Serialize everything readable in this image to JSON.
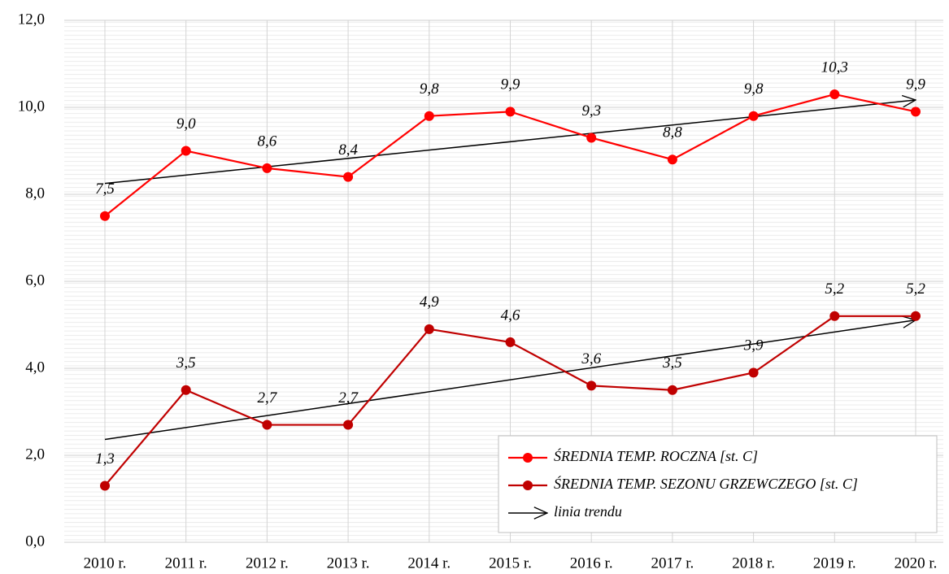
{
  "chart_data": {
    "type": "line",
    "categories": [
      "2010 r.",
      "2011 r.",
      "2012 r.",
      "2013 r.",
      "2014 r.",
      "2015 r.",
      "2016 r.",
      "2017 r.",
      "2018 r.",
      "2019 r.",
      "2020 r."
    ],
    "series": [
      {
        "name": "ŚREDNIA TEMP. ROCZNA [st. C]",
        "color": "#ff0000",
        "values": [
          7.5,
          9.0,
          8.6,
          8.4,
          9.8,
          9.9,
          9.3,
          8.8,
          9.8,
          10.3,
          9.9
        ],
        "value_labels": [
          "7,5",
          "9,0",
          "8,6",
          "8,4",
          "9,8",
          "9,9",
          "9,3",
          "8,8",
          "9,8",
          "10,3",
          "9,9"
        ]
      },
      {
        "name": "ŚREDNIA TEMP. SEZONU GRZEWCZEGO [st. C]",
        "color": "#c00000",
        "values": [
          1.3,
          3.5,
          2.7,
          2.7,
          4.9,
          4.6,
          3.6,
          3.5,
          3.9,
          5.2,
          5.2
        ],
        "value_labels": [
          "1,3",
          "3,5",
          "2,7",
          "2,7",
          "4,9",
          "4,6",
          "3,6",
          "3,5",
          "3,9",
          "5,2",
          "5,2"
        ]
      }
    ],
    "trendline": {
      "name": "linia trendu",
      "color": "#000000"
    },
    "ylim": [
      0,
      12
    ],
    "yticks": [
      {
        "value": 0,
        "label": "0,0"
      },
      {
        "value": 2,
        "label": "2,0"
      },
      {
        "value": 4,
        "label": "4,0"
      },
      {
        "value": 6,
        "label": "6,0"
      },
      {
        "value": 8,
        "label": "8,0"
      },
      {
        "value": 10,
        "label": "10,0"
      },
      {
        "value": 12,
        "label": "12,0"
      }
    ],
    "grid": true,
    "legend": "lower right"
  }
}
